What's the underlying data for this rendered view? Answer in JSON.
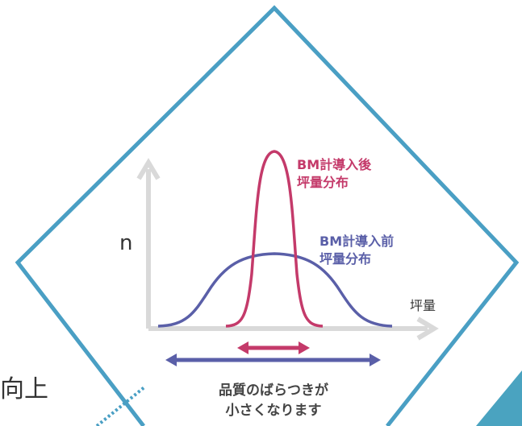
{
  "colors": {
    "frame": "#4a9fc4",
    "after": "#c43a6a",
    "before": "#5a5fa8",
    "axis": "#d9d9d9",
    "text": "#444444",
    "corner": "#4aa3c0"
  },
  "axis": {
    "y_label": "n",
    "x_label": "坪量"
  },
  "curves": {
    "after_line1": "BM計導入後",
    "after_line2": "坪量分布",
    "before_line1": "BM計導入前",
    "before_line2": "坪量分布"
  },
  "caption": {
    "line1": "品質のばらつきが",
    "line2": "小さくなります"
  },
  "side_text": "向上"
}
